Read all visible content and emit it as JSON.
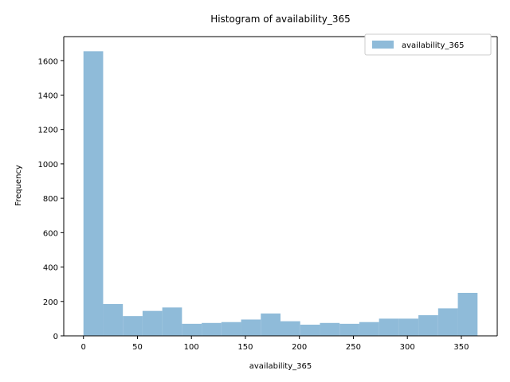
{
  "chart_data": {
    "type": "bar",
    "title": "Histogram of availability_365",
    "xlabel": "availability_365",
    "ylabel": "Frequency",
    "xlim": [
      -18.25,
      383.25
    ],
    "ylim": [
      0,
      1740
    ],
    "xticks": [
      0,
      50,
      100,
      150,
      200,
      250,
      300,
      350
    ],
    "yticks": [
      0,
      200,
      400,
      600,
      800,
      1000,
      1200,
      1400,
      1600
    ],
    "grid": false,
    "legend": {
      "position": "top-right",
      "entries": [
        "availability_365"
      ]
    },
    "bar_color": "#8fbbd9",
    "series": [
      {
        "name": "availability_365",
        "bin_edges": [
          0,
          18.25,
          36.5,
          54.75,
          73,
          91.25,
          109.5,
          127.75,
          146,
          164.25,
          182.5,
          200.75,
          219,
          237.25,
          255.5,
          273.75,
          292,
          310.25,
          328.5,
          346.75,
          365
        ],
        "values": [
          1655,
          185,
          115,
          145,
          165,
          70,
          75,
          80,
          95,
          130,
          85,
          65,
          75,
          70,
          80,
          100,
          100,
          120,
          160,
          250
        ]
      }
    ]
  }
}
